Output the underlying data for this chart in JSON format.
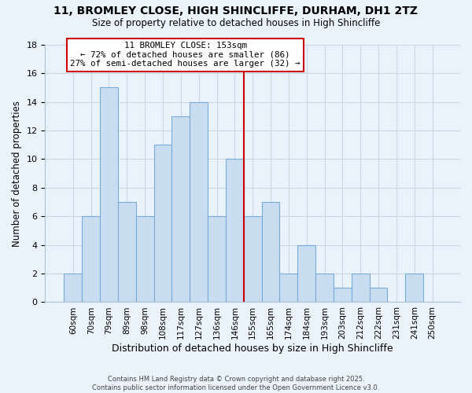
{
  "title_line1": "11, BROMLEY CLOSE, HIGH SHINCLIFFE, DURHAM, DH1 2TZ",
  "title_line2": "Size of property relative to detached houses in High Shincliffe",
  "xlabel": "Distribution of detached houses by size in High Shincliffe",
  "ylabel": "Number of detached properties",
  "bar_labels": [
    "60sqm",
    "70sqm",
    "79sqm",
    "89sqm",
    "98sqm",
    "108sqm",
    "117sqm",
    "127sqm",
    "136sqm",
    "146sqm",
    "155sqm",
    "165sqm",
    "174sqm",
    "184sqm",
    "193sqm",
    "203sqm",
    "212sqm",
    "222sqm",
    "231sqm",
    "241sqm",
    "250sqm"
  ],
  "bar_values": [
    2,
    6,
    15,
    7,
    6,
    11,
    13,
    14,
    6,
    10,
    6,
    7,
    2,
    4,
    2,
    1,
    2,
    1,
    0,
    2,
    0
  ],
  "bar_color": "#c9ddf0",
  "bar_edge_color": "#7aaadb",
  "ylim": [
    0,
    18
  ],
  "yticks": [
    0,
    2,
    4,
    6,
    8,
    10,
    12,
    14,
    16,
    18
  ],
  "vline_index": 10,
  "annotation_text_line1": "11 BROMLEY CLOSE: 153sqm",
  "annotation_text_line2": "← 72% of detached houses are smaller (86)",
  "annotation_text_line3": "27% of semi-detached houses are larger (32) →",
  "annotation_box_color": "#ffffff",
  "annotation_box_edge": "#cc0000",
  "vline_color": "#cc0000",
  "grid_color": "#c8d8e8",
  "background_color": "#eaf3fb",
  "footer_line1": "Contains HM Land Registry data © Crown copyright and database right 2025.",
  "footer_line2": "Contains public sector information licensed under the Open Government Licence v3.0."
}
